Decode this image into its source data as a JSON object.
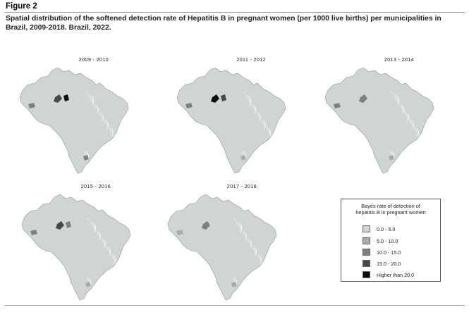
{
  "figure": {
    "title": "Figure 2",
    "caption": "Spatial distribution of the softened detection rate of Hepatitis B in pregnant women (per 1000 live births) per municipalities in Brazil, 2009-2018. Brazil, 2022."
  },
  "maps": [
    {
      "period": "2009 - 2010",
      "hotspots": [
        {
          "region": "west-amazon",
          "class": 3
        },
        {
          "region": "west-amazon-2",
          "class": 4
        },
        {
          "region": "acre",
          "class": 2
        },
        {
          "region": "south",
          "class": 2
        }
      ]
    },
    {
      "period": "2011 - 2012",
      "hotspots": [
        {
          "region": "west-amazon",
          "class": 4
        },
        {
          "region": "west-amazon-2",
          "class": 3
        },
        {
          "region": "acre",
          "class": 2
        },
        {
          "region": "south",
          "class": 1
        }
      ]
    },
    {
      "period": "2013 - 2014",
      "hotspots": [
        {
          "region": "west-amazon",
          "class": 2
        },
        {
          "region": "acre",
          "class": 2
        },
        {
          "region": "south",
          "class": 1
        }
      ]
    },
    {
      "period": "2015 - 2016",
      "hotspots": [
        {
          "region": "west-amazon",
          "class": 3
        },
        {
          "region": "west-amazon-2",
          "class": 2
        },
        {
          "region": "acre",
          "class": 2
        },
        {
          "region": "south",
          "class": 1
        }
      ]
    },
    {
      "period": "2017 - 2018",
      "hotspots": [
        {
          "region": "west-amazon",
          "class": 2
        },
        {
          "region": "acre",
          "class": 1
        },
        {
          "region": "south",
          "class": 1
        }
      ]
    }
  ],
  "legend": {
    "title_line1": "Bayes rate of detection of",
    "title_line2": "hepatitis B in pregnant women",
    "items": [
      {
        "label": "0.0 - 5.0",
        "color": "#cfd6d1"
      },
      {
        "label": "5.0 - 10.0",
        "color": "#a9aba9"
      },
      {
        "label": "10.0 - 15.0",
        "color": "#7d807e"
      },
      {
        "label": "15.0 - 20.0",
        "color": "#474947"
      },
      {
        "label": "Higher than 20.0",
        "color": "#0d0d0d"
      }
    ]
  }
}
